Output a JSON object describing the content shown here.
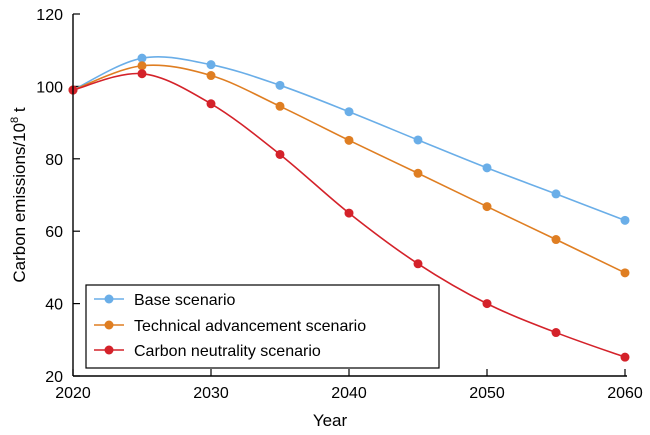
{
  "chart_data": {
    "type": "line",
    "title": "",
    "xlabel": "Year",
    "ylabel_main": "Carbon emissions/10",
    "ylabel_exp": "8",
    "ylabel_unit": " t",
    "x": [
      2020,
      2025,
      2030,
      2035,
      2040,
      2045,
      2050,
      2055,
      2060
    ],
    "xlim": [
      2020,
      2060
    ],
    "ylim": [
      20,
      120
    ],
    "xticks": [
      2020,
      2030,
      2040,
      2050,
      2060
    ],
    "yticks": [
      20,
      40,
      60,
      80,
      100,
      120
    ],
    "grid": false,
    "legend_position": "bottom-left",
    "series": [
      {
        "name": "Base scenario",
        "color": "#6aaee8",
        "values": [
          99,
          107.8,
          106,
          100.3,
          93,
          85.2,
          77.5,
          70.3,
          63
        ]
      },
      {
        "name": "Technical advancement scenario",
        "color": "#df7e22",
        "values": [
          99,
          105.7,
          103,
          94.5,
          85.1,
          76,
          66.8,
          57.7,
          48.5
        ]
      },
      {
        "name": "Carbon neutrality scenario",
        "color": "#d4222a",
        "values": [
          99,
          103.5,
          95.2,
          81.2,
          65,
          51,
          40,
          32,
          25.2
        ]
      }
    ]
  }
}
